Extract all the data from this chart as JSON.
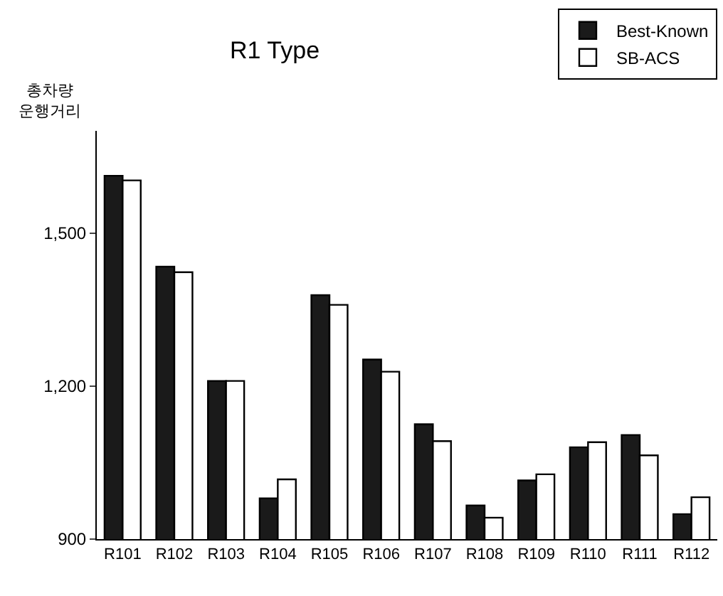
{
  "chart_data": {
    "type": "bar",
    "title": "R1 Type",
    "ylabel": "총차량 운행거리",
    "categories": [
      "R101",
      "R102",
      "R103",
      "R104",
      "R105",
      "R106",
      "R107",
      "R108",
      "R109",
      "R110",
      "R111",
      "R112"
    ],
    "series": [
      {
        "name": "Best-Known",
        "color": "#1a1a1a",
        "values": [
          1612,
          1434,
          1210,
          980,
          1378,
          1252,
          1125,
          966,
          1015,
          1080,
          1104,
          949
        ]
      },
      {
        "name": "SB-ACS",
        "color": "#ffffff",
        "values": [
          1603,
          1423,
          1210,
          1017,
          1359,
          1228,
          1092,
          942,
          1027,
          1090,
          1064,
          982
        ]
      }
    ],
    "ylim": [
      900,
      1700
    ],
    "yticks": [
      900,
      {
        "value": 1200,
        "label": "1,200"
      },
      {
        "value": 1500,
        "label": "1,500"
      }
    ],
    "grid": false,
    "legend": "top right"
  }
}
